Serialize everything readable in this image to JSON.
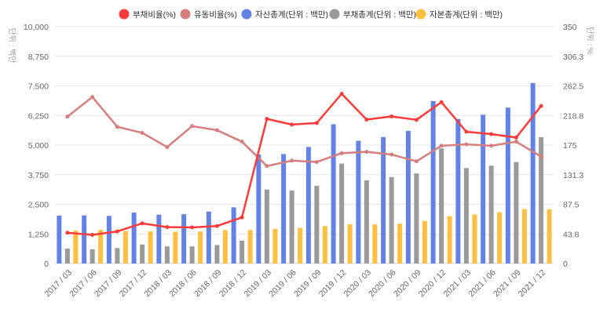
{
  "chart_data": {
    "type": "bar",
    "categories": [
      "2017 / 03",
      "2017 / 06",
      "2017 / 09",
      "2017 / 12",
      "2018 / 03",
      "2018 / 06",
      "2018 / 09",
      "2018 / 12",
      "2019 / 03",
      "2019 / 06",
      "2019 / 09",
      "2019 / 12",
      "2020 / 03",
      "2020 / 06",
      "2020 / 09",
      "2020 / 12",
      "2021 / 03",
      "2021 / 06",
      "2021 / 09",
      "2021 / 12"
    ],
    "left_axis": {
      "unit_label": "단위 : 백만",
      "ylim": [
        0,
        10000
      ],
      "ticks": [
        "0",
        "1,250",
        "2,500",
        "3,750",
        "5,000",
        "6,250",
        "7,500",
        "8,750",
        "10,000"
      ]
    },
    "right_axis": {
      "unit_label": "단위 : %",
      "ylim": [
        0,
        350
      ],
      "ticks": [
        "0",
        "43.8",
        "87.5",
        "131.3",
        "175",
        "218.8",
        "262.5",
        "306.3",
        "350"
      ]
    },
    "bar_series": [
      {
        "name": "자산총계(단위 : 백만)",
        "color": "#6482e4",
        "values": [
          2020,
          2030,
          2010,
          2150,
          2060,
          2080,
          2190,
          2370,
          4600,
          4620,
          4920,
          5880,
          5180,
          5340,
          5600,
          6860,
          6100,
          6280,
          6580,
          7620
        ]
      },
      {
        "name": "부채총계(단위 : 백만)",
        "color": "#9a9a9a",
        "values": [
          630,
          600,
          650,
          800,
          720,
          720,
          780,
          960,
          3120,
          3080,
          3280,
          4220,
          3510,
          3650,
          3800,
          4860,
          4030,
          4130,
          4280,
          5330
        ]
      },
      {
        "name": "자본총계(단위 : 백만)",
        "color": "#ffbf40",
        "values": [
          1390,
          1420,
          1370,
          1350,
          1340,
          1350,
          1410,
          1410,
          1460,
          1500,
          1580,
          1660,
          1650,
          1680,
          1790,
          2000,
          2070,
          2160,
          2300,
          2290
        ]
      }
    ],
    "line_series": [
      {
        "name": "부채비율(%)",
        "color": "#ff3b3b",
        "values": [
          45.3,
          42.3,
          47.4,
          59.3,
          53.7,
          53.3,
          55.3,
          68.1,
          213.7,
          205.3,
          207.6,
          250.8,
          212.7,
          217.3,
          212.3,
          238.5,
          194.7,
          191.2,
          186.1,
          232.8
        ]
      },
      {
        "name": "유동비율(%)",
        "color": "#d67e7e",
        "values": [
          217,
          246,
          202,
          193,
          172,
          203,
          197,
          180,
          144,
          152,
          150,
          163,
          165,
          161,
          151,
          174,
          176,
          174,
          180,
          158
        ]
      }
    ],
    "grid": true,
    "legend_position": "top"
  }
}
